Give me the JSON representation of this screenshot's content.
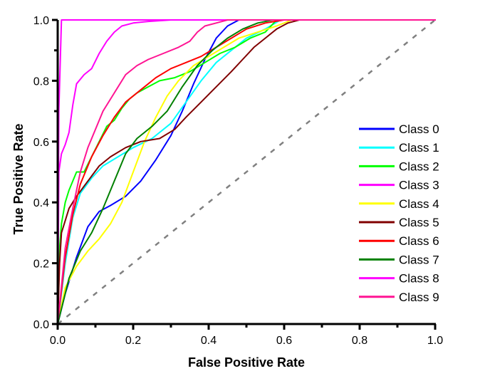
{
  "chart_data": {
    "type": "line",
    "title": "",
    "xlabel": "False Positive Rate",
    "ylabel": "True Positive Rate",
    "xlim": [
      0.0,
      1.0
    ],
    "ylim": [
      0.0,
      1.0
    ],
    "xticks": [
      "0.0",
      "0.2",
      "0.4",
      "0.6",
      "0.8",
      "1.0"
    ],
    "yticks": [
      "0.0",
      "0.2",
      "0.4",
      "0.6",
      "0.8",
      "1.0"
    ],
    "minor_ticks": true,
    "grid": false,
    "legend_position": "right",
    "reference_line": {
      "name": "chance",
      "color": "#808080",
      "style": "dashed",
      "x": [
        0,
        1
      ],
      "y": [
        0,
        1
      ]
    },
    "series": [
      {
        "name": "Class 0",
        "color": "#0000ff",
        "x": [
          0,
          0.02,
          0.05,
          0.08,
          0.11,
          0.14,
          0.18,
          0.22,
          0.26,
          0.3,
          0.33,
          0.36,
          0.39,
          0.42,
          0.45,
          0.48,
          1.0
        ],
        "y": [
          0,
          0.1,
          0.22,
          0.32,
          0.37,
          0.39,
          0.42,
          0.47,
          0.54,
          0.62,
          0.7,
          0.79,
          0.87,
          0.94,
          0.98,
          1.0,
          1.0
        ]
      },
      {
        "name": "Class 1",
        "color": "#00ffff",
        "x": [
          0,
          0.02,
          0.04,
          0.06,
          0.09,
          0.12,
          0.16,
          0.2,
          0.25,
          0.3,
          0.34,
          0.38,
          0.42,
          0.46,
          0.5,
          0.55,
          0.59,
          1.0
        ],
        "y": [
          0,
          0.2,
          0.35,
          0.43,
          0.48,
          0.52,
          0.55,
          0.58,
          0.61,
          0.66,
          0.73,
          0.8,
          0.86,
          0.9,
          0.94,
          0.97,
          1.0,
          1.0
        ]
      },
      {
        "name": "Class 2",
        "color": "#00ff00",
        "x": [
          0,
          0.005,
          0.01,
          0.02,
          0.03,
          0.04,
          0.05,
          0.07,
          0.09,
          0.11,
          0.13,
          0.15,
          0.17,
          0.19,
          0.21,
          0.24,
          0.27,
          0.31,
          0.35,
          0.39,
          0.43,
          0.47,
          0.51,
          0.55,
          0.58,
          1.0
        ],
        "y": [
          0,
          0.25,
          0.33,
          0.4,
          0.44,
          0.47,
          0.5,
          0.5,
          0.55,
          0.6,
          0.65,
          0.67,
          0.71,
          0.74,
          0.76,
          0.78,
          0.8,
          0.81,
          0.83,
          0.86,
          0.89,
          0.91,
          0.94,
          0.96,
          1.0,
          1.0
        ]
      },
      {
        "name": "Class 3",
        "color": "#ff00ff",
        "x": [
          0,
          0.003,
          0.01,
          1.0
        ],
        "y": [
          0,
          0.7,
          1.0,
          1.0
        ]
      },
      {
        "name": "Class 4",
        "color": "#ffff00",
        "x": [
          0,
          0.02,
          0.05,
          0.08,
          0.11,
          0.14,
          0.17,
          0.2,
          0.23,
          0.26,
          0.29,
          0.32,
          0.36,
          0.4,
          0.44,
          0.48,
          0.53,
          0.58,
          0.62,
          1.0
        ],
        "y": [
          0,
          0.12,
          0.19,
          0.24,
          0.28,
          0.33,
          0.4,
          0.5,
          0.6,
          0.68,
          0.75,
          0.8,
          0.85,
          0.88,
          0.91,
          0.94,
          0.96,
          0.98,
          1.0,
          1.0
        ]
      },
      {
        "name": "Class 5",
        "color": "#800000",
        "x": [
          0,
          0.005,
          0.01,
          0.03,
          0.05,
          0.08,
          0.11,
          0.14,
          0.18,
          0.22,
          0.27,
          0.31,
          0.34,
          0.38,
          0.42,
          0.46,
          0.49,
          0.52,
          0.55,
          0.58,
          0.61,
          0.64,
          1.0
        ],
        "y": [
          0,
          0.2,
          0.3,
          0.38,
          0.42,
          0.47,
          0.52,
          0.55,
          0.58,
          0.6,
          0.61,
          0.64,
          0.68,
          0.73,
          0.78,
          0.83,
          0.87,
          0.91,
          0.94,
          0.97,
          0.99,
          1.0,
          1.0
        ]
      },
      {
        "name": "Class 6",
        "color": "#ff0000",
        "x": [
          0,
          0.02,
          0.04,
          0.06,
          0.09,
          0.12,
          0.15,
          0.18,
          0.22,
          0.26,
          0.3,
          0.34,
          0.38,
          0.42,
          0.46,
          0.5,
          0.55,
          0.6,
          0.63,
          1.0
        ],
        "y": [
          0,
          0.22,
          0.36,
          0.46,
          0.55,
          0.62,
          0.68,
          0.73,
          0.77,
          0.81,
          0.84,
          0.86,
          0.88,
          0.91,
          0.94,
          0.97,
          0.99,
          1.0,
          1.0,
          1.0
        ]
      },
      {
        "name": "Class 7",
        "color": "#008000",
        "x": [
          0,
          0.03,
          0.06,
          0.09,
          0.12,
          0.15,
          0.18,
          0.21,
          0.25,
          0.29,
          0.33,
          0.37,
          0.41,
          0.45,
          0.49,
          0.53,
          0.57,
          0.61,
          1.0
        ],
        "y": [
          0,
          0.15,
          0.24,
          0.3,
          0.38,
          0.47,
          0.56,
          0.61,
          0.65,
          0.7,
          0.78,
          0.85,
          0.9,
          0.94,
          0.97,
          0.99,
          1.0,
          1.0,
          1.0
        ]
      },
      {
        "name": "Class 8",
        "color": "#ff00ff",
        "x": [
          0,
          0.003,
          0.01,
          0.02,
          0.03,
          0.04,
          0.05,
          0.07,
          0.09,
          0.11,
          0.13,
          0.15,
          0.17,
          0.2,
          0.24,
          0.3,
          0.38,
          0.45,
          1.0
        ],
        "y": [
          0,
          0.5,
          0.56,
          0.59,
          0.63,
          0.72,
          0.79,
          0.82,
          0.84,
          0.89,
          0.93,
          0.96,
          0.98,
          0.99,
          0.995,
          1.0,
          1.0,
          1.0,
          1.0
        ]
      },
      {
        "name": "Class 9",
        "color": "#ff1493",
        "x": [
          0,
          0.02,
          0.04,
          0.06,
          0.08,
          0.1,
          0.12,
          0.15,
          0.18,
          0.21,
          0.24,
          0.28,
          0.32,
          0.35,
          0.37,
          0.39,
          0.42,
          0.45,
          0.5,
          0.55,
          1.0
        ],
        "y": [
          0,
          0.25,
          0.38,
          0.5,
          0.58,
          0.64,
          0.7,
          0.76,
          0.82,
          0.85,
          0.87,
          0.89,
          0.91,
          0.93,
          0.96,
          0.98,
          0.99,
          1.0,
          1.0,
          1.0,
          1.0
        ]
      }
    ]
  }
}
